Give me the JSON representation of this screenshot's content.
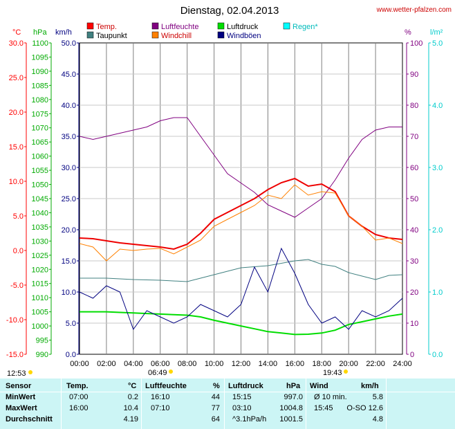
{
  "header": {
    "title": "Dienstag, 02.04.2013",
    "site": "www.wetter-pfalzen.com"
  },
  "legend": [
    {
      "label": "Temp.",
      "color": "#ff0000"
    },
    {
      "label": "Luftfeuchte",
      "color": "#800080"
    },
    {
      "label": "Luftdruck",
      "color": "#00dd00"
    },
    {
      "label": "Regen*",
      "color": "#00ffff"
    },
    {
      "label": "Taupunkt",
      "color": "#408080"
    },
    {
      "label": "Windchill",
      "color": "#ff8000"
    },
    {
      "label": "Windböen",
      "color": "#000080"
    }
  ],
  "axis_units": {
    "temp": "°C",
    "pressure": "hPa",
    "wind": "km/h",
    "humidity": "%",
    "rain": "l/m²"
  },
  "sun": {
    "sunrise_prev": "12:53",
    "sunrise": "06:49",
    "sunset": "19:43"
  },
  "chart_data": {
    "type": "line",
    "title": "Dienstag, 02.04.2013",
    "x": [
      "00:00",
      "02:00",
      "04:00",
      "06:00",
      "08:00",
      "10:00",
      "12:00",
      "14:00",
      "16:00",
      "18:00",
      "20:00",
      "22:00",
      "24:00"
    ],
    "axes": {
      "temp": {
        "ticks": [
          "30.0",
          "25.0",
          "20.0",
          "15.0",
          "10.0",
          "5.0",
          "0.0",
          "-5.0",
          "-10.0",
          "-15.0"
        ]
      },
      "pressure": {
        "ticks": [
          "1100",
          "1095",
          "1090",
          "1085",
          "1080",
          "1075",
          "1070",
          "1065",
          "1060",
          "1055",
          "1050",
          "1045",
          "1040",
          "1035",
          "1030",
          "1025",
          "1020",
          "1015",
          "1010",
          "1005",
          "1000",
          "995",
          "990"
        ]
      },
      "wind": {
        "ticks": [
          "50.0",
          "45.0",
          "40.0",
          "35.0",
          "30.0",
          "25.0",
          "20.0",
          "15.0",
          "10.0",
          "5.0",
          "0.0"
        ]
      },
      "humidity": {
        "ticks": [
          "100",
          "90",
          "80",
          "70",
          "60",
          "50",
          "40",
          "30",
          "20",
          "10",
          "0"
        ]
      },
      "rain": {
        "ticks": [
          "5.0",
          "4.0",
          "3.0",
          "2.0",
          "1.0",
          "0.0"
        ]
      }
    },
    "series": [
      {
        "name": "Temp.",
        "axis": "temp",
        "color": "#ee0000",
        "points": [
          [
            0,
            1.8
          ],
          [
            1,
            1.7
          ],
          [
            2,
            1.4
          ],
          [
            3,
            1.1
          ],
          [
            4,
            0.9
          ],
          [
            5,
            0.7
          ],
          [
            6,
            0.5
          ],
          [
            7,
            0.2
          ],
          [
            8,
            0.9
          ],
          [
            9,
            2.5
          ],
          [
            10,
            4.5
          ],
          [
            11,
            5.5
          ],
          [
            12,
            6.5
          ],
          [
            13,
            7.5
          ],
          [
            14,
            8.8
          ],
          [
            15,
            9.8
          ],
          [
            16,
            10.4
          ],
          [
            17,
            9.3
          ],
          [
            18,
            9.6
          ],
          [
            19,
            8.5
          ],
          [
            20,
            5.0
          ],
          [
            21,
            3.5
          ],
          [
            22,
            2.3
          ],
          [
            23,
            1.8
          ],
          [
            24,
            1.6
          ]
        ]
      },
      {
        "name": "Luftfeuchte",
        "axis": "humidity",
        "color": "#800080",
        "points": [
          [
            0,
            70
          ],
          [
            1,
            69
          ],
          [
            2,
            70
          ],
          [
            3,
            71
          ],
          [
            4,
            72
          ],
          [
            5,
            73
          ],
          [
            6,
            75
          ],
          [
            7,
            76
          ],
          [
            8,
            76
          ],
          [
            9,
            70
          ],
          [
            10,
            64
          ],
          [
            11,
            58
          ],
          [
            12,
            55
          ],
          [
            13,
            52
          ],
          [
            14,
            48
          ],
          [
            15,
            46
          ],
          [
            16,
            44
          ],
          [
            17,
            47
          ],
          [
            18,
            50
          ],
          [
            19,
            56
          ],
          [
            20,
            63
          ],
          [
            21,
            69
          ],
          [
            22,
            72
          ],
          [
            23,
            73
          ],
          [
            24,
            73
          ]
        ]
      },
      {
        "name": "Luftdruck",
        "axis": "pressure",
        "color": "#00dd00",
        "points": [
          [
            0,
            1005.0
          ],
          [
            1,
            1005.0
          ],
          [
            2,
            1005.0
          ],
          [
            3,
            1004.8
          ],
          [
            4,
            1004.6
          ],
          [
            5,
            1004.4
          ],
          [
            6,
            1004.2
          ],
          [
            7,
            1004.0
          ],
          [
            8,
            1003.8
          ],
          [
            9,
            1003.2
          ],
          [
            10,
            1002.0
          ],
          [
            11,
            1001.0
          ],
          [
            12,
            1000.0
          ],
          [
            13,
            999.0
          ],
          [
            14,
            998.0
          ],
          [
            15,
            997.5
          ],
          [
            16,
            997.0
          ],
          [
            17,
            997.1
          ],
          [
            18,
            997.5
          ],
          [
            19,
            998.5
          ],
          [
            20,
            1000.5
          ],
          [
            21,
            1001.5
          ],
          [
            22,
            1002.5
          ],
          [
            23,
            1003.5
          ],
          [
            24,
            1004.2
          ]
        ]
      },
      {
        "name": "Taupunkt",
        "axis": "temp",
        "color": "#408080",
        "points": [
          [
            0,
            -4.0
          ],
          [
            2,
            -4.0
          ],
          [
            4,
            -4.2
          ],
          [
            6,
            -4.3
          ],
          [
            8,
            -4.5
          ],
          [
            9,
            -4.0
          ],
          [
            10,
            -3.5
          ],
          [
            11,
            -3.0
          ],
          [
            12,
            -2.5
          ],
          [
            14,
            -2.2
          ],
          [
            16,
            -1.5
          ],
          [
            17,
            -1.3
          ],
          [
            18,
            -2.0
          ],
          [
            19,
            -2.3
          ],
          [
            20,
            -3.2
          ],
          [
            21,
            -3.7
          ],
          [
            22,
            -4.2
          ],
          [
            23,
            -3.6
          ],
          [
            24,
            -3.5
          ]
        ]
      },
      {
        "name": "Windchill",
        "axis": "temp",
        "color": "#ff8000",
        "points": [
          [
            0,
            1.0
          ],
          [
            1,
            0.5
          ],
          [
            2,
            -1.5
          ],
          [
            3,
            0.2
          ],
          [
            4,
            0.0
          ],
          [
            5,
            0.2
          ],
          [
            6,
            0.3
          ],
          [
            7,
            -0.5
          ],
          [
            8,
            0.5
          ],
          [
            9,
            1.5
          ],
          [
            10,
            3.5
          ],
          [
            11,
            4.5
          ],
          [
            12,
            5.5
          ],
          [
            13,
            6.5
          ],
          [
            14,
            8.0
          ],
          [
            15,
            7.5
          ],
          [
            16,
            9.5
          ],
          [
            17,
            8.0
          ],
          [
            18,
            8.5
          ],
          [
            19,
            8.3
          ],
          [
            20,
            5.0
          ],
          [
            21,
            3.5
          ],
          [
            22,
            1.5
          ],
          [
            23,
            1.8
          ],
          [
            24,
            1.0
          ]
        ]
      },
      {
        "name": "Windböen",
        "axis": "wind",
        "color": "#000080",
        "points": [
          [
            0,
            10
          ],
          [
            1,
            9
          ],
          [
            2,
            11
          ],
          [
            3,
            10
          ],
          [
            4,
            4
          ],
          [
            5,
            7
          ],
          [
            6,
            6
          ],
          [
            7,
            5
          ],
          [
            8,
            6
          ],
          [
            9,
            8
          ],
          [
            10,
            7
          ],
          [
            11,
            6
          ],
          [
            12,
            8
          ],
          [
            13,
            14
          ],
          [
            14,
            10
          ],
          [
            15,
            17
          ],
          [
            16,
            13
          ],
          [
            17,
            8
          ],
          [
            18,
            5
          ],
          [
            19,
            6
          ],
          [
            20,
            4
          ],
          [
            21,
            7
          ],
          [
            22,
            6
          ],
          [
            23,
            7
          ],
          [
            24,
            9
          ]
        ]
      }
    ]
  },
  "table": {
    "headers": {
      "sensor": "Sensor",
      "temp": "Temp.",
      "temp_unit": "°C",
      "hum": "Luftfeuchte",
      "hum_unit": "%",
      "press": "Luftdruck",
      "press_unit": "hPa",
      "wind": "Wind",
      "wind_unit": "km/h"
    },
    "rows": [
      {
        "label": "MinWert",
        "t_time": "07:00",
        "t_val": "0.2",
        "h_time": "16:10",
        "h_val": "44",
        "p_time": "15:15",
        "p_val": "997.0",
        "w_time": "Ø 10 min.",
        "w_val": "5.8"
      },
      {
        "label": "MaxWert",
        "t_time": "16:00",
        "t_val": "10.4",
        "h_time": "07:10",
        "h_val": "77",
        "p_time": "03:10",
        "p_val": "1004.8",
        "w_time": "15:45",
        "w_val": "O-SO 12.6"
      },
      {
        "label": "Durchschnitt",
        "t_time": "",
        "t_val": "4.19",
        "h_time": "",
        "h_val": "64",
        "p_time": "^3.1hPa/h",
        "p_val": "1001.5",
        "w_time": "",
        "w_val": "4.8"
      }
    ]
  }
}
